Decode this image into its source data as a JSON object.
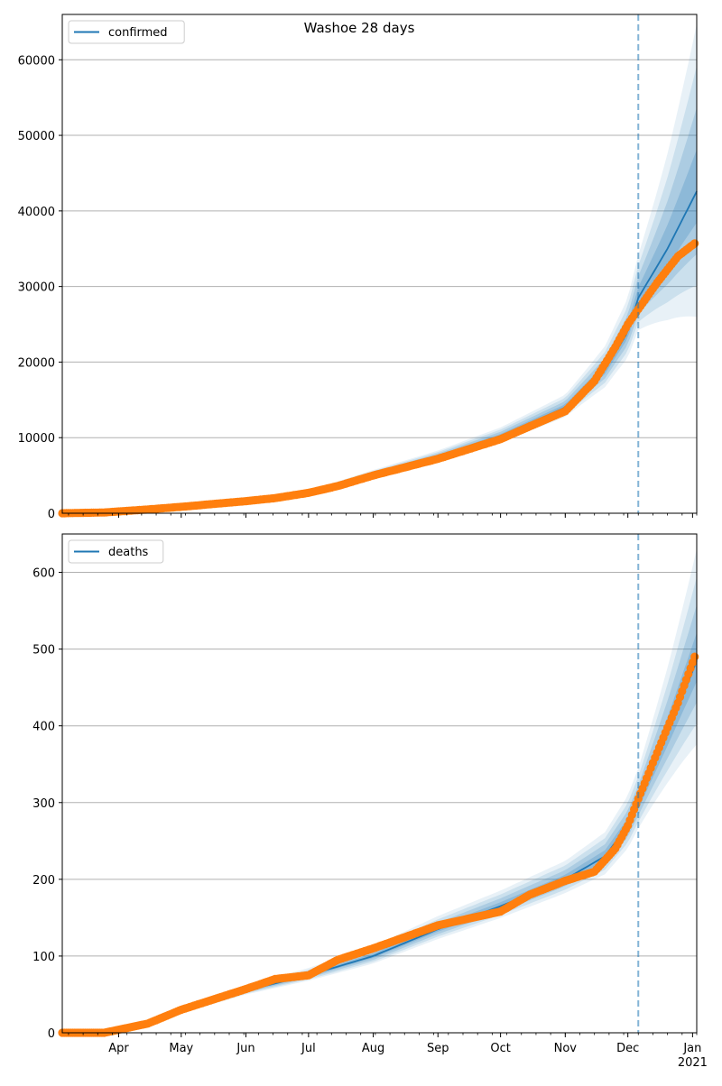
{
  "figure": {
    "title": "Washoe 28 days"
  },
  "colors": {
    "model_line": "#1f77b4",
    "band": "#1f77b4",
    "observed": "#ff7f0e",
    "forecast_marker": "#1f77b4",
    "grid": "#b0b0b0"
  },
  "x_axis": {
    "tick_labels": [
      "Apr",
      "May",
      "Jun",
      "Jul",
      "Aug",
      "Sep",
      "Oct",
      "Nov",
      "Dec",
      "Jan"
    ],
    "tick_dates": [
      "2020-04-01",
      "2020-05-01",
      "2020-06-01",
      "2020-07-01",
      "2020-08-01",
      "2020-09-01",
      "2020-10-01",
      "2020-11-01",
      "2020-12-01",
      "2021-01-01"
    ],
    "year_label": "2021",
    "range": [
      "2020-03-05",
      "2021-01-03"
    ],
    "forecast_start": "2020-12-06"
  },
  "chart_data": [
    {
      "type": "line",
      "legend": "confirmed",
      "legend_position": "top-left",
      "ylim": [
        0,
        66000
      ],
      "yticks": [
        0,
        10000,
        20000,
        30000,
        40000,
        50000,
        60000
      ],
      "grid": "y",
      "observed_start": "2020-03-05",
      "observed_end": "2021-01-02",
      "observed_knots": [
        [
          "2020-03-05",
          0
        ],
        [
          "2020-03-25",
          100
        ],
        [
          "2020-04-15",
          500
        ],
        [
          "2020-05-01",
          850
        ],
        [
          "2020-06-01",
          1600
        ],
        [
          "2020-06-15",
          2000
        ],
        [
          "2020-07-01",
          2700
        ],
        [
          "2020-07-15",
          3600
        ],
        [
          "2020-08-01",
          5000
        ],
        [
          "2020-09-01",
          7200
        ],
        [
          "2020-10-01",
          9800
        ],
        [
          "2020-10-15",
          11500
        ],
        [
          "2020-11-01",
          13500
        ],
        [
          "2020-11-15",
          17500
        ],
        [
          "2020-11-25",
          22000
        ],
        [
          "2020-12-01",
          25000
        ],
        [
          "2020-12-06",
          27000
        ],
        [
          "2020-12-15",
          30500
        ],
        [
          "2020-12-25",
          34000
        ],
        [
          "2021-01-02",
          35700
        ]
      ],
      "model_knots": [
        [
          "2020-03-05",
          0
        ],
        [
          "2020-04-15",
          450
        ],
        [
          "2020-06-01",
          1550
        ],
        [
          "2020-07-01",
          2700
        ],
        [
          "2020-08-01",
          5200
        ],
        [
          "2020-09-01",
          7500
        ],
        [
          "2020-10-01",
          10200
        ],
        [
          "2020-11-01",
          14000
        ],
        [
          "2020-11-20",
          19000
        ],
        [
          "2020-12-01",
          24000
        ],
        [
          "2020-12-06",
          28500
        ],
        [
          "2020-12-20",
          35000
        ],
        [
          "2021-01-03",
          42600
        ]
      ],
      "band_spread_knots": [
        [
          "2020-03-05",
          0
        ],
        [
          "2020-05-01",
          0.08
        ],
        [
          "2020-08-01",
          0.1
        ],
        [
          "2020-11-01",
          0.12
        ],
        [
          "2020-12-06",
          0.2
        ],
        [
          "2020-12-20",
          0.36
        ],
        [
          "2021-01-03",
          0.52
        ]
      ]
    },
    {
      "type": "line",
      "legend": "deaths",
      "legend_position": "top-left",
      "ylim": [
        0,
        650
      ],
      "yticks": [
        0,
        100,
        200,
        300,
        400,
        500,
        600
      ],
      "grid": "y",
      "observed_start": "2020-03-05",
      "observed_end": "2021-01-02",
      "observed_knots": [
        [
          "2020-03-05",
          0
        ],
        [
          "2020-03-25",
          0
        ],
        [
          "2020-04-15",
          12
        ],
        [
          "2020-05-01",
          30
        ],
        [
          "2020-06-01",
          57
        ],
        [
          "2020-06-15",
          70
        ],
        [
          "2020-07-01",
          75
        ],
        [
          "2020-07-15",
          95
        ],
        [
          "2020-08-01",
          110
        ],
        [
          "2020-09-01",
          140
        ],
        [
          "2020-10-01",
          158
        ],
        [
          "2020-10-15",
          180
        ],
        [
          "2020-11-01",
          198
        ],
        [
          "2020-11-15",
          210
        ],
        [
          "2020-11-25",
          240
        ],
        [
          "2020-12-01",
          270
        ],
        [
          "2020-12-06",
          305
        ],
        [
          "2020-12-15",
          365
        ],
        [
          "2020-12-25",
          430
        ],
        [
          "2021-01-02",
          490
        ]
      ],
      "model_knots": [
        [
          "2020-03-05",
          0
        ],
        [
          "2020-04-01",
          3
        ],
        [
          "2020-05-01",
          28
        ],
        [
          "2020-06-01",
          55
        ],
        [
          "2020-07-01",
          75
        ],
        [
          "2020-08-01",
          100
        ],
        [
          "2020-09-01",
          135
        ],
        [
          "2020-10-01",
          165
        ],
        [
          "2020-11-01",
          200
        ],
        [
          "2020-11-20",
          230
        ],
        [
          "2020-12-01",
          270
        ],
        [
          "2020-12-06",
          300
        ],
        [
          "2020-12-20",
          390
        ],
        [
          "2021-01-03",
          485
        ]
      ],
      "band_spread_knots": [
        [
          "2020-03-05",
          0
        ],
        [
          "2020-04-15",
          0.12
        ],
        [
          "2020-08-01",
          0.13
        ],
        [
          "2020-11-01",
          0.12
        ],
        [
          "2020-12-06",
          0.15
        ],
        [
          "2020-12-20",
          0.22
        ],
        [
          "2021-01-03",
          0.3
        ]
      ]
    }
  ]
}
